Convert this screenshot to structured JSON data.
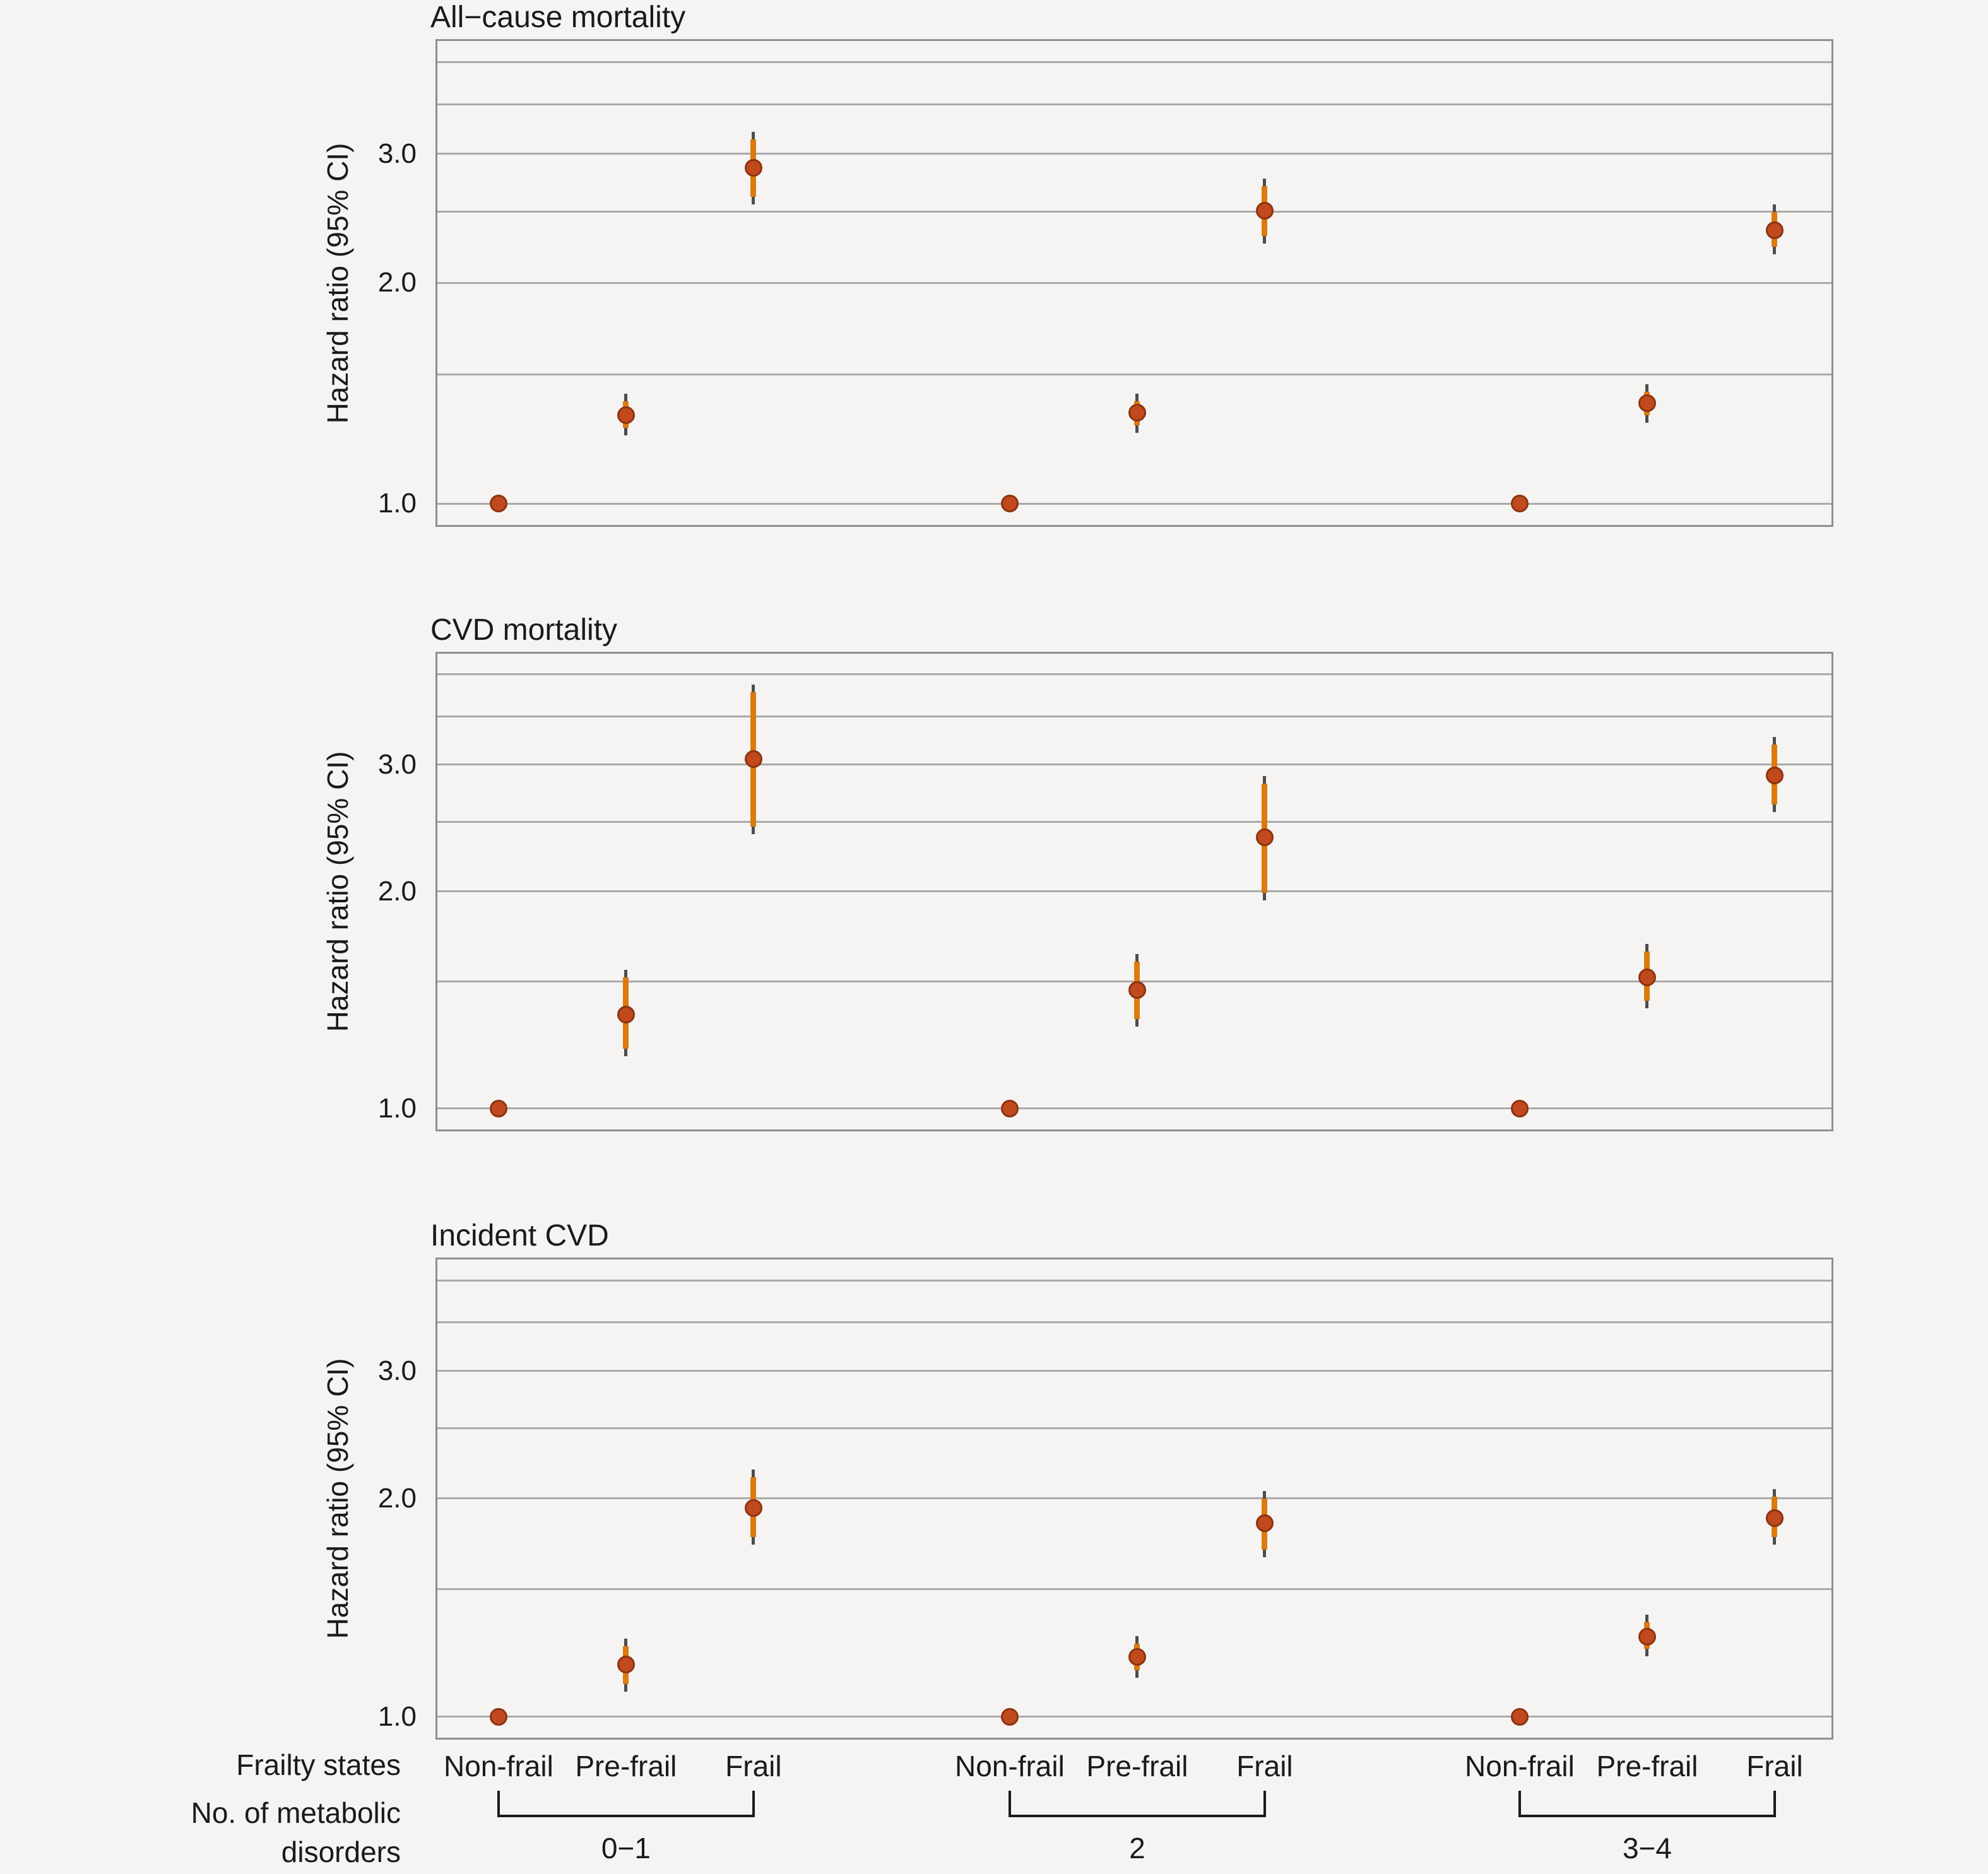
{
  "figure": {
    "y_axis_title": "Hazard ratio (95% CI)",
    "x_axis_row1_label": "Frailty states",
    "x_axis_row2_label_line1": "No. of metabolic",
    "x_axis_row2_label_line2": "disorders"
  },
  "chart_data": {
    "type": "scatter",
    "subtype": "pointrange-forest-plot",
    "y_scale": "log",
    "ylabel": "Hazard ratio (95% CI)",
    "y_tick_labels": [
      "1.0",
      "2.0",
      "3.0"
    ],
    "y_tick_values": [
      1.0,
      2.0,
      3.0
    ],
    "y_gridline_values": [
      1.0,
      1.5,
      2.0,
      2.5,
      3.0,
      3.5,
      4.0
    ],
    "ylim": [
      0.93,
      4.3
    ],
    "grid": "on",
    "legend": "none",
    "frailty_states": [
      "Non-frail",
      "Pre-frail",
      "Frail"
    ],
    "metabolic_groups": [
      "0−1",
      "2",
      "3−4"
    ],
    "panels": [
      {
        "title": "All−cause mortality",
        "groups": [
          {
            "metabolic": "0−1",
            "points": [
              {
                "state": "Non-frail",
                "hr": 1.0,
                "lo": 1.0,
                "hi": 1.0,
                "ref": true
              },
              {
                "state": "Pre-frail",
                "hr": 1.32,
                "lo": 1.27,
                "hi": 1.38,
                "ref": false
              },
              {
                "state": "Frail",
                "hr": 2.87,
                "lo": 2.62,
                "hi": 3.14,
                "ref": false
              }
            ]
          },
          {
            "metabolic": "2",
            "points": [
              {
                "state": "Non-frail",
                "hr": 1.0,
                "lo": 1.0,
                "hi": 1.0,
                "ref": true
              },
              {
                "state": "Pre-frail",
                "hr": 1.33,
                "lo": 1.28,
                "hi": 1.38,
                "ref": false
              },
              {
                "state": "Frail",
                "hr": 2.51,
                "lo": 2.32,
                "hi": 2.71,
                "ref": false
              }
            ]
          },
          {
            "metabolic": "3−4",
            "points": [
              {
                "state": "Non-frail",
                "hr": 1.0,
                "lo": 1.0,
                "hi": 1.0,
                "ref": true
              },
              {
                "state": "Pre-frail",
                "hr": 1.37,
                "lo": 1.32,
                "hi": 1.42,
                "ref": false
              },
              {
                "state": "Frail",
                "hr": 2.36,
                "lo": 2.24,
                "hi": 2.5,
                "ref": false
              }
            ]
          }
        ]
      },
      {
        "title": "CVD mortality",
        "groups": [
          {
            "metabolic": "0−1",
            "points": [
              {
                "state": "Non-frail",
                "hr": 1.0,
                "lo": 1.0,
                "hi": 1.0,
                "ref": true
              },
              {
                "state": "Pre-frail",
                "hr": 1.35,
                "lo": 1.21,
                "hi": 1.52,
                "ref": false
              },
              {
                "state": "Frail",
                "hr": 3.05,
                "lo": 2.46,
                "hi": 3.78,
                "ref": false
              }
            ]
          },
          {
            "metabolic": "2",
            "points": [
              {
                "state": "Non-frail",
                "hr": 1.0,
                "lo": 1.0,
                "hi": 1.0,
                "ref": true
              },
              {
                "state": "Pre-frail",
                "hr": 1.46,
                "lo": 1.33,
                "hi": 1.6,
                "ref": false
              },
              {
                "state": "Frail",
                "hr": 2.38,
                "lo": 1.99,
                "hi": 2.82,
                "ref": false
              }
            ]
          },
          {
            "metabolic": "3−4",
            "points": [
              {
                "state": "Non-frail",
                "hr": 1.0,
                "lo": 1.0,
                "hi": 1.0,
                "ref": true
              },
              {
                "state": "Pre-frail",
                "hr": 1.52,
                "lo": 1.41,
                "hi": 1.65,
                "ref": false
              },
              {
                "state": "Frail",
                "hr": 2.9,
                "lo": 2.64,
                "hi": 3.2,
                "ref": false
              }
            ]
          }
        ]
      },
      {
        "title": "Incident CVD",
        "groups": [
          {
            "metabolic": "0−1",
            "points": [
              {
                "state": "Non-frail",
                "hr": 1.0,
                "lo": 1.0,
                "hi": 1.0,
                "ref": true
              },
              {
                "state": "Pre-frail",
                "hr": 1.18,
                "lo": 1.11,
                "hi": 1.25,
                "ref": false
              },
              {
                "state": "Frail",
                "hr": 1.94,
                "lo": 1.77,
                "hi": 2.14,
                "ref": false
              }
            ]
          },
          {
            "metabolic": "2",
            "points": [
              {
                "state": "Non-frail",
                "hr": 1.0,
                "lo": 1.0,
                "hi": 1.0,
                "ref": true
              },
              {
                "state": "Pre-frail",
                "hr": 1.21,
                "lo": 1.16,
                "hi": 1.26,
                "ref": false
              },
              {
                "state": "Frail",
                "hr": 1.85,
                "lo": 1.7,
                "hi": 2.0,
                "ref": false
              }
            ]
          },
          {
            "metabolic": "3−4",
            "points": [
              {
                "state": "Non-frail",
                "hr": 1.0,
                "lo": 1.0,
                "hi": 1.0,
                "ref": true
              },
              {
                "state": "Pre-frail",
                "hr": 1.29,
                "lo": 1.24,
                "hi": 1.35,
                "ref": false
              },
              {
                "state": "Frail",
                "hr": 1.88,
                "lo": 1.77,
                "hi": 2.01,
                "ref": false
              }
            ]
          }
        ]
      }
    ],
    "colors": {
      "point_fill": "#c04a1e",
      "point_edge": "#8e3310",
      "ci_line": "#dc7a0e",
      "ci_tip": "#4d4d4d",
      "gridline": "#a9a9a9",
      "panel_border": "#8f8f8f",
      "text": "#1a1a1a",
      "background": "#f5f4f2"
    }
  }
}
